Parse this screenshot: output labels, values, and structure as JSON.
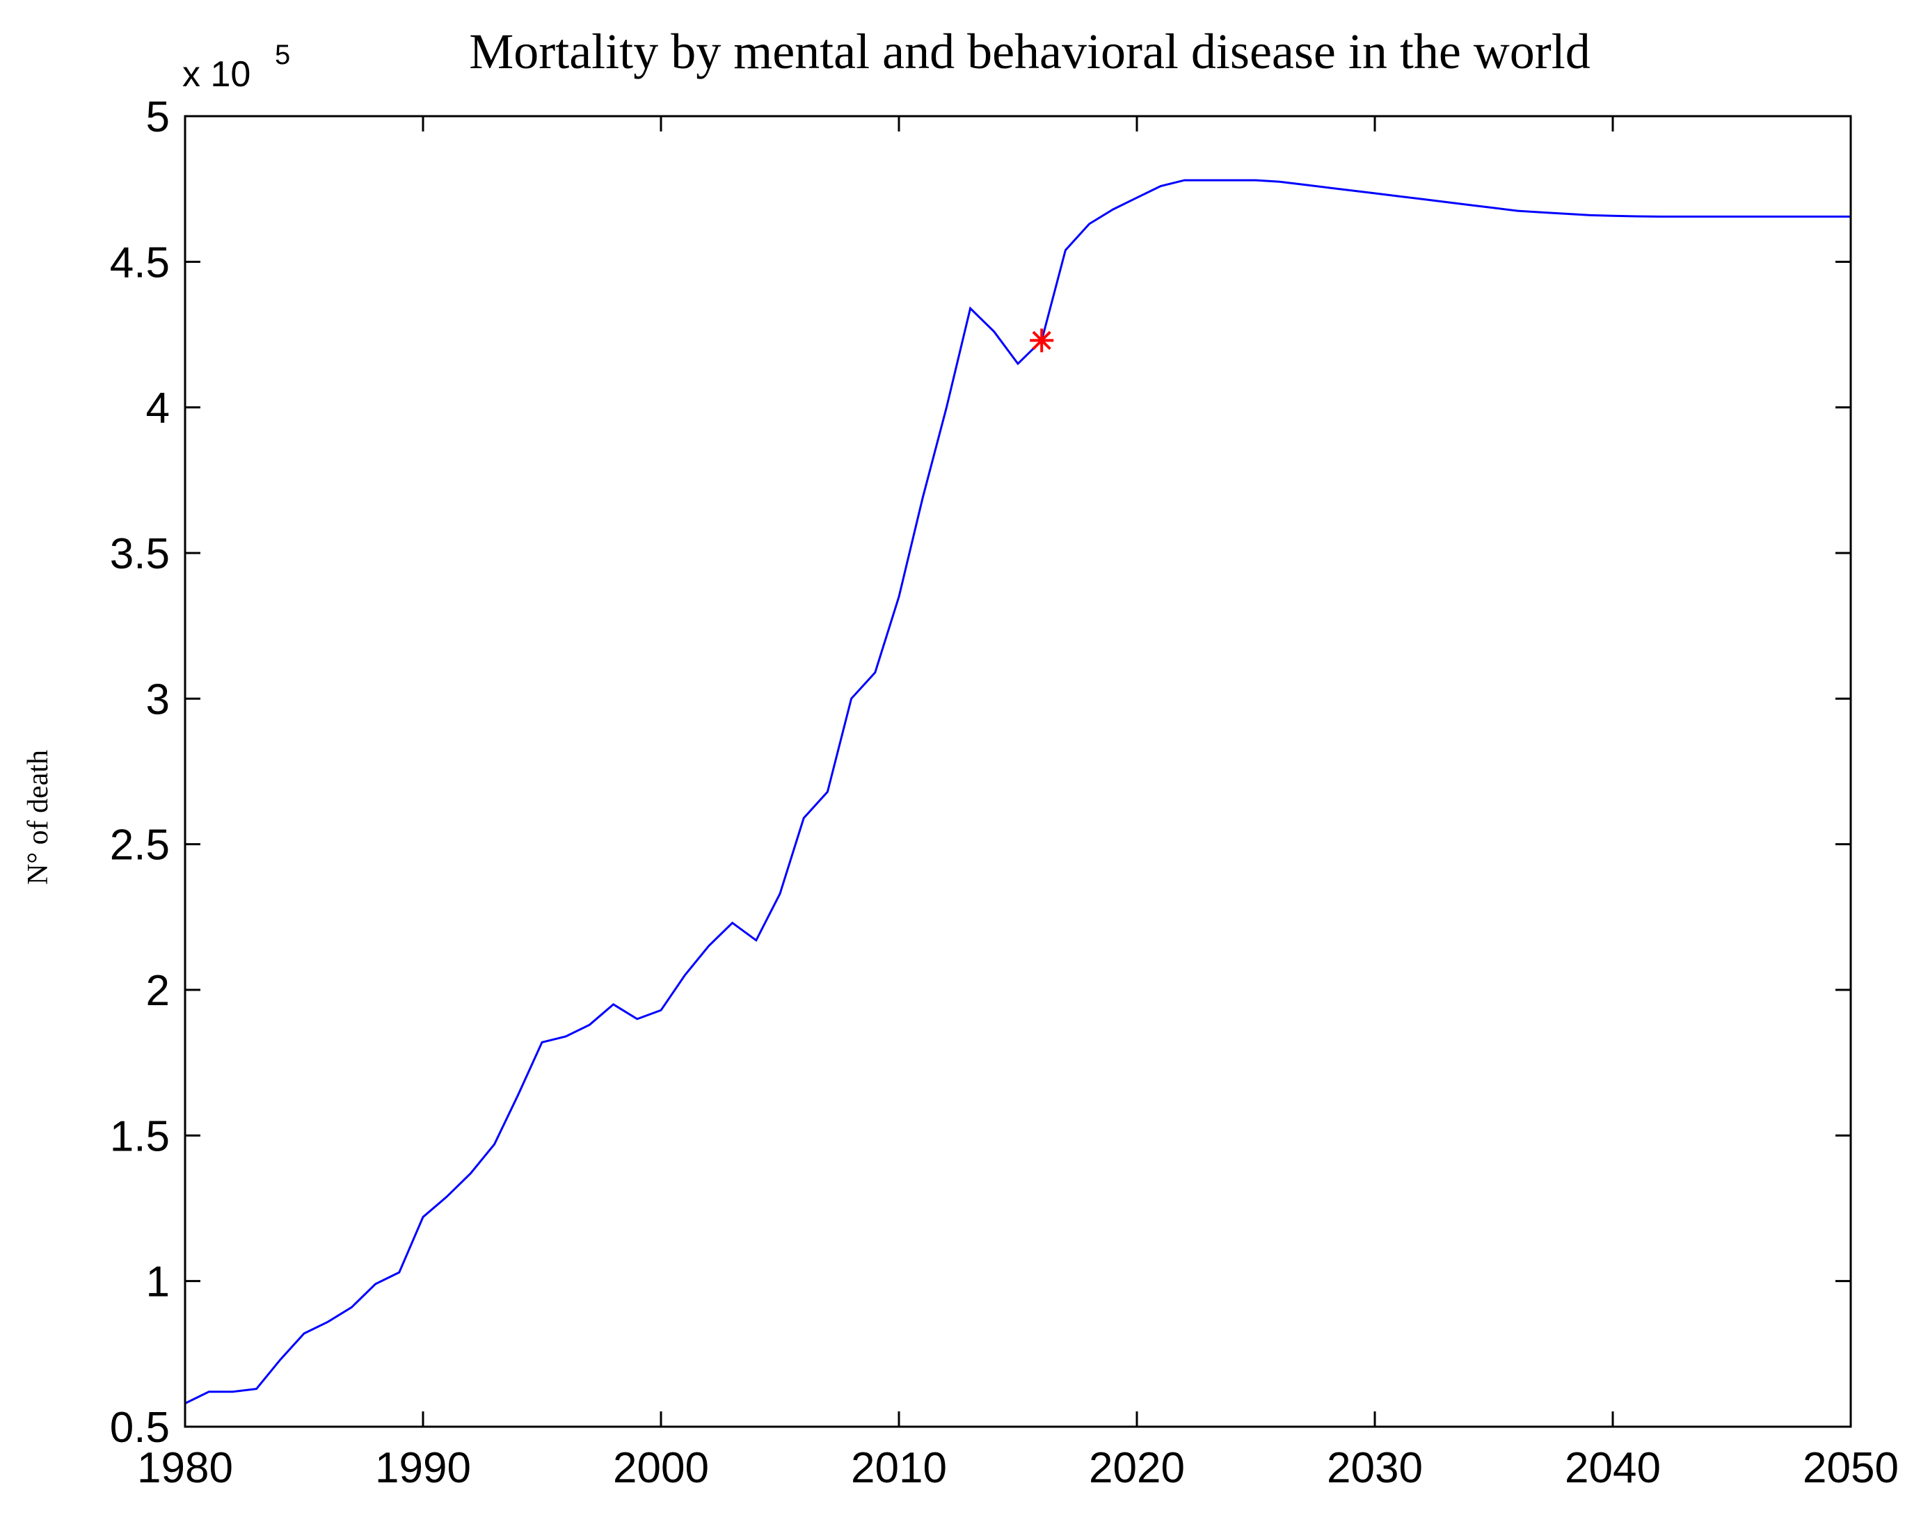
{
  "chart_data": {
    "type": "line",
    "title": "Mortality  by mental  and behavioral  disease in  the world",
    "xlabel": "",
    "ylabel": "N° of death",
    "y_multiplier_base": "x 10",
    "y_multiplier_exponent": "5",
    "xlim": [
      1980,
      2050
    ],
    "ylim": [
      0.5,
      5
    ],
    "x_ticks": [
      1980,
      1990,
      2000,
      2010,
      2020,
      2030,
      2040,
      2050
    ],
    "y_ticks": [
      0.5,
      1,
      1.5,
      2,
      2.5,
      3,
      3.5,
      4,
      4.5,
      5
    ],
    "y_tick_labels": [
      "0.5",
      "1",
      "1.5",
      "2",
      "2.5",
      "3",
      "3.5",
      "4",
      "4.5",
      "5"
    ],
    "line_color": "#0000ff",
    "marker_color": "#ff0000",
    "series": [
      {
        "name": "Mortality",
        "x": [
          1980,
          1981,
          1982,
          1983,
          1984,
          1985,
          1986,
          1987,
          1988,
          1989,
          1990,
          1991,
          1992,
          1993,
          1994,
          1995,
          1996,
          1997,
          1998,
          1999,
          2000,
          2001,
          2002,
          2003,
          2004,
          2005,
          2006,
          2007,
          2008,
          2009,
          2010,
          2011,
          2012,
          2013,
          2014,
          2015,
          2016,
          2017,
          2018,
          2019,
          2020,
          2021,
          2022,
          2023,
          2024,
          2025,
          2026,
          2027,
          2028,
          2029,
          2030,
          2031,
          2032,
          2033,
          2034,
          2035,
          2036,
          2037,
          2038,
          2039,
          2040,
          2041,
          2042,
          2043,
          2044,
          2045,
          2046,
          2047,
          2048,
          2049,
          2050
        ],
        "values": [
          0.58,
          0.62,
          0.62,
          0.63,
          0.73,
          0.82,
          0.86,
          0.91,
          0.99,
          1.03,
          1.22,
          1.29,
          1.37,
          1.47,
          1.64,
          1.82,
          1.84,
          1.88,
          1.95,
          1.9,
          1.93,
          2.05,
          2.15,
          2.23,
          2.17,
          2.33,
          2.59,
          2.68,
          3.0,
          3.09,
          3.35,
          3.69,
          4.0,
          4.34,
          4.26,
          4.15,
          4.23,
          4.54,
          4.63,
          4.68,
          4.72,
          4.76,
          4.78,
          4.78,
          4.78,
          4.78,
          4.775,
          4.765,
          4.755,
          4.745,
          4.735,
          4.725,
          4.715,
          4.705,
          4.695,
          4.685,
          4.675,
          4.67,
          4.665,
          4.66,
          4.658,
          4.656,
          4.655,
          4.655,
          4.655,
          4.655,
          4.655,
          4.655,
          4.655,
          4.655,
          4.655
        ]
      }
    ],
    "highlight_point": {
      "x": 2016,
      "y": 4.23
    }
  }
}
